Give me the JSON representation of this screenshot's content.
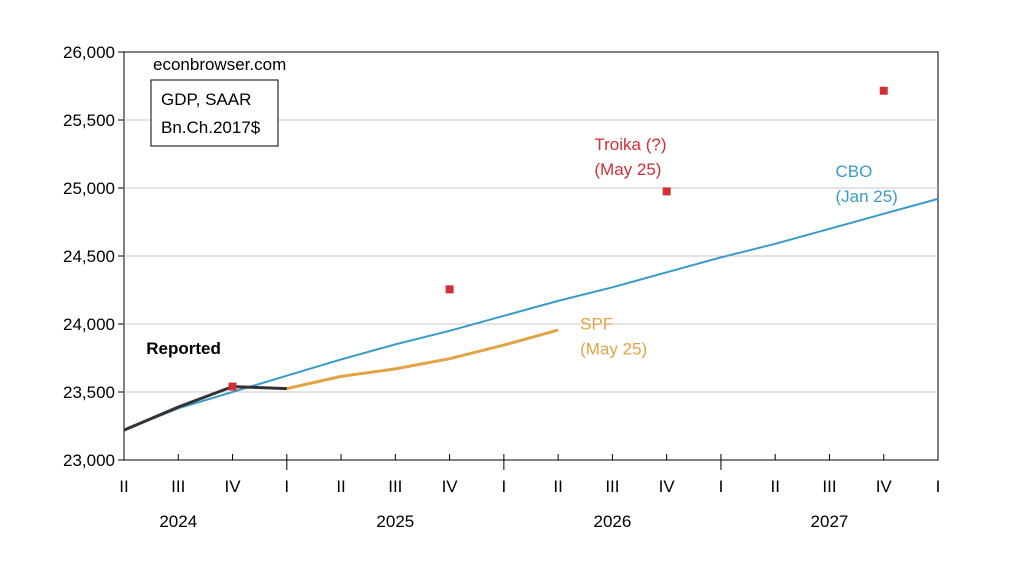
{
  "chart_data": {
    "type": "line",
    "source_label": "econbrowser.com",
    "legend_box": {
      "line1": "GDP, SAAR",
      "line2": "Bn.Ch.2017$"
    },
    "ylim": [
      23000,
      26000
    ],
    "y_ticks": [
      23000,
      23500,
      24000,
      24500,
      25000,
      25500,
      26000
    ],
    "y_tick_labels": [
      "23,000",
      "23,500",
      "24,000",
      "24,500",
      "25,000",
      "25,500",
      "26,000"
    ],
    "x_range": [
      "2024Q2",
      "2028Q1"
    ],
    "x_quarters": [
      "2024Q2",
      "2024Q3",
      "2024Q4",
      "2025Q1",
      "2025Q2",
      "2025Q3",
      "2025Q4",
      "2026Q1",
      "2026Q2",
      "2026Q3",
      "2026Q4",
      "2027Q1",
      "2027Q2",
      "2027Q3",
      "2027Q4",
      "2028Q1"
    ],
    "x_tick_labels": [
      "II",
      "III",
      "IV",
      "I",
      "II",
      "III",
      "IV",
      "I",
      "II",
      "III",
      "IV",
      "I",
      "II",
      "III",
      "IV",
      "I"
    ],
    "year_labels": [
      {
        "text": "2024",
        "quarter": "2024Q3"
      },
      {
        "text": "2025",
        "quarter": "2025Q3"
      },
      {
        "text": "2026",
        "quarter": "2026Q3"
      },
      {
        "text": "2027",
        "quarter": "2027Q3"
      }
    ],
    "grid": true,
    "series": [
      {
        "name": "CBO (Jan 25)",
        "style": "line",
        "color": "#3a9bc9",
        "points": [
          [
            "2024Q2",
            23220
          ],
          [
            "2024Q3",
            23380
          ],
          [
            "2024Q4",
            23500
          ],
          [
            "2025Q1",
            23620
          ],
          [
            "2025Q2",
            23740
          ],
          [
            "2025Q3",
            23850
          ],
          [
            "2025Q4",
            23950
          ],
          [
            "2026Q1",
            24060
          ],
          [
            "2026Q2",
            24170
          ],
          [
            "2026Q3",
            24270
          ],
          [
            "2026Q4",
            24380
          ],
          [
            "2027Q1",
            24490
          ],
          [
            "2027Q2",
            24590
          ],
          [
            "2027Q3",
            24700
          ],
          [
            "2027Q4",
            24810
          ],
          [
            "2028Q1",
            24920
          ]
        ]
      },
      {
        "name": "SPF (May 25)",
        "style": "line",
        "color": "#e3a345",
        "points": [
          [
            "2025Q1",
            23525
          ],
          [
            "2025Q2",
            23615
          ],
          [
            "2025Q3",
            23670
          ],
          [
            "2025Q4",
            23745
          ],
          [
            "2026Q1",
            23845
          ],
          [
            "2026Q2",
            23955
          ]
        ]
      },
      {
        "name": "Reported",
        "style": "line",
        "color": "#333333",
        "points": [
          [
            "2024Q2",
            23220
          ],
          [
            "2024Q3",
            23390
          ],
          [
            "2024Q4",
            23540
          ],
          [
            "2025Q1",
            23525
          ]
        ]
      },
      {
        "name": "Troika (?) (May 25)",
        "style": "marker",
        "color": "#cf2f35",
        "points": [
          [
            "2024Q4",
            23540
          ],
          [
            "2025Q4",
            24255
          ],
          [
            "2026Q4",
            24975
          ],
          [
            "2027Q4",
            25715
          ]
        ]
      }
    ],
    "annotations": [
      {
        "key": "reported",
        "line1": "Reported",
        "line2": "",
        "color": "#000000",
        "bold": true,
        "anchor": [
          "2024Q3",
          23780
        ]
      },
      {
        "key": "spf",
        "line1": "SPF",
        "line2": "(May 25)",
        "color": "#e3a345",
        "bold": false,
        "anchor": [
          "2026Q2",
          23960
        ]
      },
      {
        "key": "troika",
        "line1": "Troika (?)",
        "line2": "(May 25)",
        "color": "#cf2f35",
        "bold": false,
        "anchor": [
          "2026Q3",
          25280
        ]
      },
      {
        "key": "cbo",
        "line1": "CBO",
        "line2": "(Jan 25)",
        "color": "#3a9bc9",
        "bold": false,
        "anchor": [
          "2027Q3",
          25080
        ]
      }
    ]
  }
}
